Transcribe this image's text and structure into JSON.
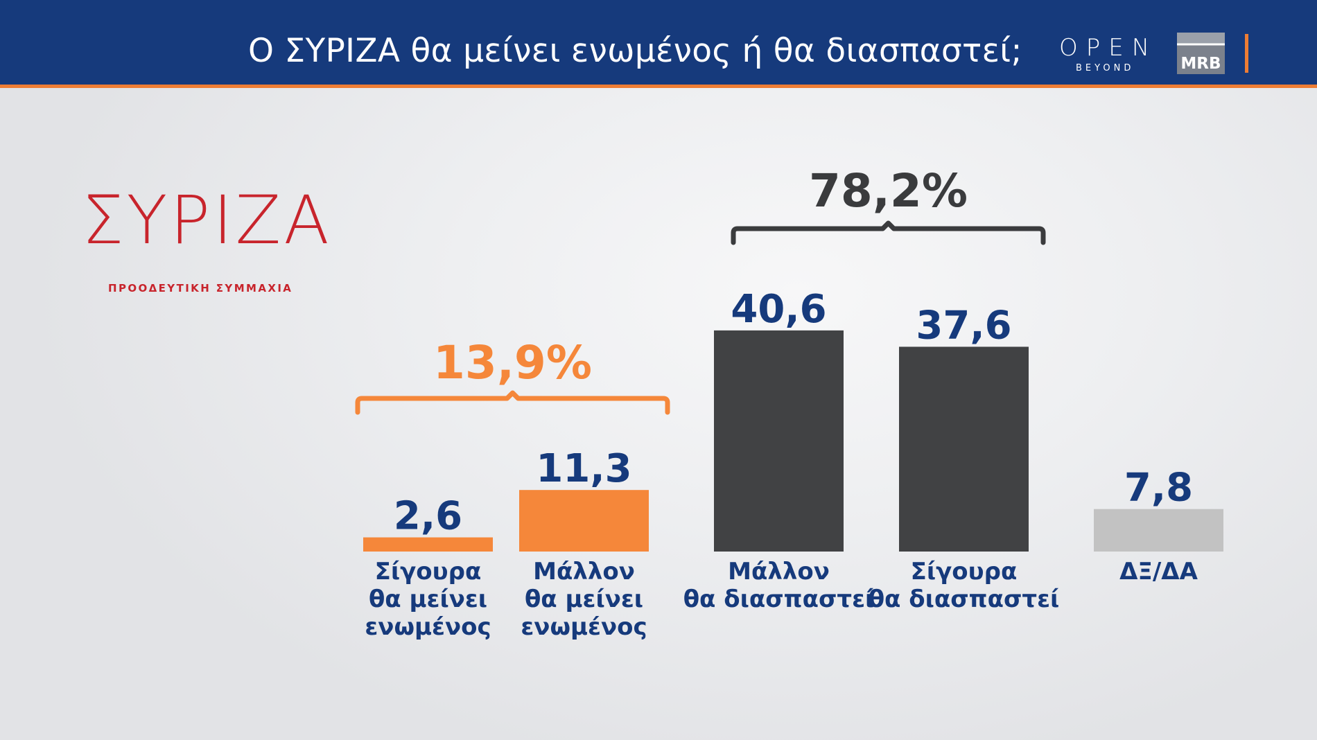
{
  "header": {
    "title": "Ο ΣΥΡΙΖΑ θα μείνει ενωμένος ή θα διασπαστεί;",
    "open_logo": "OPEN",
    "open_logo_sub": "BEYOND",
    "mrb_logo": "MRB"
  },
  "party_logo": {
    "name": "ΣΥΡΙΖΑ",
    "subtitle": "ΠΡΟΟΔΕΥΤΙΚΗ ΣΥΜΜΑΧΙΑ"
  },
  "colors": {
    "header_bg": "#163a7c",
    "accent_orange": "#ee7d34",
    "value_blue": "#163a7c",
    "bar_orange": "#f5873a",
    "bar_dark": "#414244",
    "bar_grey": "#c2c2c2",
    "party_red": "#c8242c"
  },
  "chart_data": {
    "type": "bar",
    "title": "Ο ΣΥΡΙΖΑ θα μείνει ενωμένος ή θα διασπαστεί;",
    "xlabel": "",
    "ylabel": "",
    "categories": [
      "Σίγουρα θα μείνει ενωμένος",
      "Μάλλον θα μείνει ενωμένος",
      "Μάλλον θα διασπαστεί",
      "Σίγουρα θα διασπαστεί",
      "ΔΞ/ΔΑ"
    ],
    "category_lines": [
      [
        "Σίγουρα",
        "θα μείνει",
        "ενωμένος"
      ],
      [
        "Μάλλον",
        "θα μείνει",
        "ενωμένος"
      ],
      [
        "Μάλλον",
        "θα διασπαστεί"
      ],
      [
        "Σίγουρα",
        "θα διασπαστεί"
      ],
      [
        "ΔΞ/ΔΑ"
      ]
    ],
    "values": [
      2.6,
      11.3,
      40.6,
      37.6,
      7.8
    ],
    "value_labels": [
      "2,6",
      "11,3",
      "40,6",
      "37,6",
      "7,8"
    ],
    "bar_colors": [
      "#f5873a",
      "#f5873a",
      "#414244",
      "#414244",
      "#c2c2c2"
    ],
    "groups": [
      {
        "label": "13,9%",
        "value": 13.9,
        "members": [
          0,
          1
        ],
        "color": "#f5873a"
      },
      {
        "label": "78,2%",
        "value": 78.2,
        "members": [
          2,
          3
        ],
        "color": "#414244"
      }
    ],
    "grid": false,
    "legend": "none"
  }
}
